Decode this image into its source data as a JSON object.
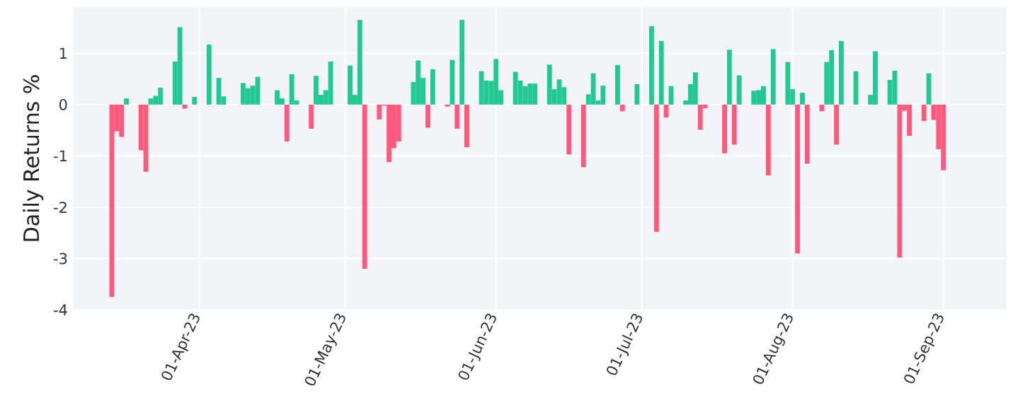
{
  "chart_data": {
    "type": "bar",
    "ylabel": "Daily Returns %",
    "x": [
      "2023-03-14",
      "2023-03-15",
      "2023-03-16",
      "2023-03-17",
      "2023-03-20",
      "2023-03-21",
      "2023-03-22",
      "2023-03-23",
      "2023-03-24",
      "2023-03-27",
      "2023-03-28",
      "2023-03-29",
      "2023-03-31",
      "2023-04-03",
      "2023-04-05",
      "2023-04-06",
      "2023-04-10",
      "2023-04-11",
      "2023-04-12",
      "2023-04-13",
      "2023-04-17",
      "2023-04-18",
      "2023-04-19",
      "2023-04-20",
      "2023-04-21",
      "2023-04-24",
      "2023-04-25",
      "2023-04-26",
      "2023-04-27",
      "2023-04-28",
      "2023-05-02",
      "2023-05-03",
      "2023-05-04",
      "2023-05-05",
      "2023-05-08",
      "2023-05-09",
      "2023-05-10",
      "2023-05-11",
      "2023-05-12",
      "2023-05-15",
      "2023-05-16",
      "2023-05-17",
      "2023-05-18",
      "2023-05-19",
      "2023-05-22",
      "2023-05-23",
      "2023-05-24",
      "2023-05-25",
      "2023-05-26",
      "2023-05-29",
      "2023-05-30",
      "2023-05-31",
      "2023-06-01",
      "2023-06-02",
      "2023-06-05",
      "2023-06-06",
      "2023-06-07",
      "2023-06-08",
      "2023-06-09",
      "2023-06-12",
      "2023-06-13",
      "2023-06-14",
      "2023-06-15",
      "2023-06-16",
      "2023-06-19",
      "2023-06-20",
      "2023-06-21",
      "2023-06-22",
      "2023-06-23",
      "2023-06-26",
      "2023-06-27",
      "2023-06-30",
      "2023-07-03",
      "2023-07-04",
      "2023-07-05",
      "2023-07-06",
      "2023-07-07",
      "2023-07-10",
      "2023-07-11",
      "2023-07-12",
      "2023-07-13",
      "2023-07-14",
      "2023-07-18",
      "2023-07-19",
      "2023-07-20",
      "2023-07-21",
      "2023-07-24",
      "2023-07-25",
      "2023-07-26",
      "2023-07-27",
      "2023-07-28",
      "2023-07-31",
      "2023-08-01",
      "2023-08-02",
      "2023-08-03",
      "2023-08-04",
      "2023-08-07",
      "2023-08-08",
      "2023-08-09",
      "2023-08-10",
      "2023-08-11",
      "2023-08-14",
      "2023-08-17",
      "2023-08-18",
      "2023-08-21",
      "2023-08-22",
      "2023-08-23",
      "2023-08-24",
      "2023-08-25",
      "2023-08-28",
      "2023-08-29",
      "2023-08-30",
      "2023-08-31",
      "2023-09-01"
    ],
    "values": [
      -3.75,
      -0.52,
      -0.63,
      0.12,
      -0.89,
      -1.31,
      0.12,
      0.17,
      0.33,
      0.84,
      1.51,
      -0.08,
      0.15,
      1.17,
      0.52,
      0.16,
      0.42,
      0.32,
      0.37,
      0.54,
      0.28,
      0.12,
      -0.72,
      0.59,
      0.08,
      -0.47,
      0.56,
      0.19,
      0.28,
      0.84,
      0.76,
      0.19,
      1.65,
      -3.2,
      -0.29,
      -0.02,
      -1.12,
      -0.85,
      -0.72,
      0.44,
      0.86,
      0.52,
      -0.45,
      0.69,
      -0.04,
      0.87,
      -0.47,
      1.65,
      -0.83,
      0.65,
      0.47,
      0.46,
      0.89,
      0.28,
      0.64,
      0.47,
      0.36,
      0.41,
      0.41,
      0.78,
      0.3,
      0.49,
      0.34,
      -0.97,
      -1.22,
      0.2,
      0.61,
      0.08,
      0.37,
      0.77,
      -0.13,
      0.4,
      1.53,
      -2.48,
      1.24,
      -0.25,
      0.36,
      0.08,
      0.4,
      0.63,
      -0.49,
      -0.07,
      -0.95,
      1.07,
      -0.78,
      0.57,
      0.27,
      0.28,
      0.36,
      -1.38,
      1.08,
      0.83,
      0.3,
      -2.9,
      0.23,
      -1.15,
      -0.13,
      0.83,
      1.06,
      -0.78,
      1.24,
      0.65,
      0.19,
      1.04,
      0.48,
      0.66,
      -2.98,
      -0.12,
      -0.61,
      -0.32,
      0.61,
      -0.3,
      -0.87,
      -1.28
    ],
    "colors": [
      "#ff5a7e",
      "#ff5a7e",
      "#ff5a7e",
      "#23c991",
      "#ff5a7e",
      "#ff5a7e",
      "#23c991",
      "#23c991",
      "#23c991",
      "#23c991",
      "#23c991",
      "#ff5a7e",
      "#23c991",
      "#23c991",
      "#23c991",
      "#23c991",
      "#23c991",
      "#23c991",
      "#23c991",
      "#23c991",
      "#23c991",
      "#23c991",
      "#ff5a7e",
      "#23c991",
      "#23c991",
      "#ff5a7e",
      "#23c991",
      "#23c991",
      "#23c991",
      "#23c991",
      "#23c991",
      "#23c991",
      "#23c991",
      "#ff5a7e",
      "#ff5a7e",
      "#ff5a7e",
      "#ff5a7e",
      "#ff5a7e",
      "#ff5a7e",
      "#23c991",
      "#23c991",
      "#23c991",
      "#ff5a7e",
      "#23c991",
      "#ff5a7e",
      "#23c991",
      "#ff5a7e",
      "#23c991",
      "#ff5a7e",
      "#23c991",
      "#23c991",
      "#23c991",
      "#23c991",
      "#23c991",
      "#23c991",
      "#23c991",
      "#23c991",
      "#23c991",
      "#23c991",
      "#23c991",
      "#23c991",
      "#23c991",
      "#23c991",
      "#ff5a7e",
      "#ff5a7e",
      "#23c991",
      "#23c991",
      "#23c991",
      "#23c991",
      "#23c991",
      "#ff5a7e",
      "#23c991",
      "#23c991",
      "#ff5a7e",
      "#23c991",
      "#ff5a7e",
      "#23c991",
      "#23c991",
      "#23c991",
      "#23c991",
      "#ff5a7e",
      "#ff5a7e",
      "#ff5a7e",
      "#23c991",
      "#ff5a7e",
      "#23c991",
      "#23c991",
      "#23c991",
      "#23c991",
      "#ff5a7e",
      "#23c991",
      "#23c991",
      "#23c991",
      "#ff5a7e",
      "#23c991",
      "#ff5a7e",
      "#ff5a7e",
      "#23c991",
      "#23c991",
      "#ff5a7e",
      "#23c991",
      "#23c991",
      "#23c991",
      "#23c991",
      "#23c991",
      "#23c991",
      "#ff5a7e",
      "#ff5a7e",
      "#ff5a7e",
      "#ff5a7e",
      "#23c991",
      "#ff5a7e",
      "#ff5a7e",
      "#ff5a7e"
    ],
    "xlim": [
      "2023-03-06",
      "2023-09-14"
    ],
    "xticks": [
      {
        "value": "2023-04-01",
        "label": "01-Apr-23"
      },
      {
        "value": "2023-05-01",
        "label": "01-May-23"
      },
      {
        "value": "2023-06-01",
        "label": "01-Jun-23"
      },
      {
        "value": "2023-07-01",
        "label": "01-Jul-23"
      },
      {
        "value": "2023-08-01",
        "label": "01-Aug-23"
      },
      {
        "value": "2023-09-01",
        "label": "01-Sep-23"
      }
    ],
    "ylim": [
      -4,
      1.9
    ],
    "yticks": [
      -4,
      -3,
      -2,
      -1,
      0,
      1
    ],
    "grid": true
  }
}
